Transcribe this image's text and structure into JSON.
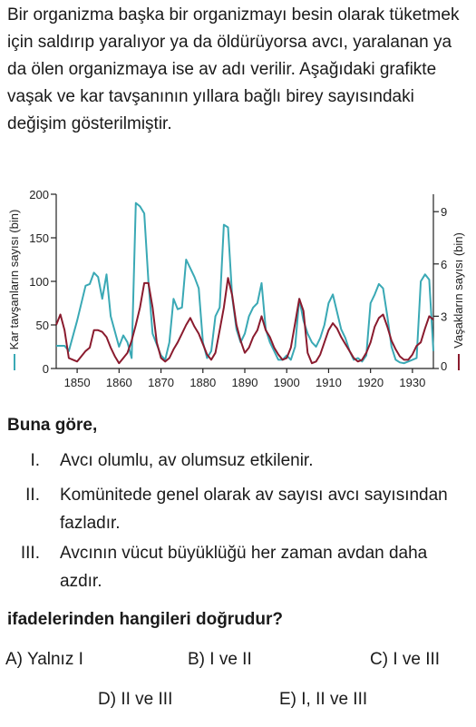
{
  "intro": "Bir organizma başka bir organizmayı besin olarak tüketmek için saldırıp yaralıyor ya da öldürüyorsa avcı, yaralanan ya da ölen organizmaya ise av adı verilir. Aşağıdaki grafikte vaşak ve kar tavşanının yıllara bağlı birey sayısındaki değişim gösterilmiştir.",
  "question": {
    "head": "Buna göre,",
    "items": [
      {
        "num": "I.",
        "text": "Avcı olumlu, av olumsuz etkilenir."
      },
      {
        "num": "II.",
        "text": "Komünitede genel olarak av sayısı avcı sayısından fazladır."
      },
      {
        "num": "III.",
        "text": "Avcının vücut büyüklüğü her zaman avdan daha azdır."
      }
    ],
    "foot": "ifadelerinden hangileri doğrudur?",
    "options": [
      {
        "letter": "A)",
        "text": "Yalnız I"
      },
      {
        "letter": "B)",
        "text": "I ve II"
      },
      {
        "letter": "C)",
        "text": "I ve III"
      },
      {
        "letter": "D)",
        "text": "II ve III"
      },
      {
        "letter": "E)",
        "text": "I, II ve III"
      }
    ]
  },
  "chart_data": {
    "type": "line",
    "title": "",
    "xlabel": "",
    "ylabel_left": "Kar tavşanların sayısı (bin)",
    "ylabel_right": "Vaşakların sayısı (bin)",
    "xlim": [
      1845,
      1935
    ],
    "ylim_left": [
      0,
      200
    ],
    "ylim_right": [
      0,
      10
    ],
    "x_ticks": [
      1850,
      1860,
      1870,
      1880,
      1890,
      1900,
      1910,
      1920,
      1930
    ],
    "y_ticks_left": [
      0,
      50,
      100,
      150,
      200
    ],
    "y_ticks_right": [
      0,
      3,
      6,
      9
    ],
    "grid": false,
    "colors": {
      "hare": "#3aa9b5",
      "lynx": "#8a1b2e"
    },
    "series": [
      {
        "name": "Kar tavşanların sayısı",
        "axis": "left",
        "x": [
          1845,
          1847,
          1848,
          1850,
          1852,
          1853,
          1854,
          1855,
          1856,
          1857,
          1858,
          1860,
          1861,
          1862,
          1863,
          1864,
          1865,
          1866,
          1867,
          1868,
          1870,
          1871,
          1872,
          1873,
          1874,
          1875,
          1876,
          1877,
          1878,
          1879,
          1880,
          1881,
          1882,
          1883,
          1884,
          1885,
          1886,
          1887,
          1888,
          1889,
          1890,
          1891,
          1892,
          1893,
          1894,
          1895,
          1896,
          1897,
          1898,
          1899,
          1900,
          1901,
          1902,
          1903,
          1904,
          1905,
          1906,
          1907,
          1908,
          1909,
          1910,
          1911,
          1912,
          1913,
          1914,
          1915,
          1916,
          1917,
          1918,
          1919,
          1920,
          1921,
          1922,
          1923,
          1924,
          1925,
          1926,
          1927,
          1928,
          1929,
          1930,
          1931,
          1932,
          1933,
          1934,
          1935
        ],
        "y": [
          26,
          26,
          20,
          55,
          95,
          97,
          110,
          105,
          80,
          108,
          60,
          25,
          38,
          30,
          12,
          190,
          186,
          178,
          100,
          40,
          15,
          10,
          30,
          80,
          68,
          70,
          125,
          115,
          105,
          92,
          30,
          12,
          20,
          60,
          70,
          165,
          162,
          82,
          45,
          30,
          40,
          60,
          70,
          75,
          98,
          45,
          30,
          20,
          10,
          10,
          15,
          10,
          25,
          80,
          55,
          40,
          30,
          25,
          35,
          50,
          75,
          85,
          65,
          45,
          35,
          20,
          10,
          12,
          8,
          15,
          75,
          85,
          97,
          92,
          60,
          25,
          10,
          7,
          6,
          8,
          10,
          12,
          100,
          108,
          102,
          20
        ]
      },
      {
        "name": "Vaşakların sayısı",
        "axis": "right",
        "x": [
          1845,
          1846,
          1847,
          1848,
          1849,
          1850,
          1851,
          1852,
          1853,
          1854,
          1855,
          1856,
          1857,
          1858,
          1859,
          1860,
          1861,
          1862,
          1863,
          1864,
          1865,
          1866,
          1867,
          1868,
          1869,
          1870,
          1871,
          1872,
          1873,
          1874,
          1875,
          1876,
          1877,
          1878,
          1879,
          1880,
          1881,
          1882,
          1883,
          1884,
          1885,
          1886,
          1887,
          1888,
          1889,
          1890,
          1891,
          1892,
          1893,
          1894,
          1895,
          1896,
          1897,
          1898,
          1899,
          1900,
          1901,
          1902,
          1903,
          1904,
          1905,
          1906,
          1907,
          1908,
          1909,
          1910,
          1911,
          1912,
          1913,
          1914,
          1915,
          1916,
          1917,
          1918,
          1919,
          1920,
          1921,
          1922,
          1923,
          1924,
          1925,
          1926,
          1927,
          1928,
          1929,
          1930,
          1931,
          1932,
          1933,
          1934,
          1935
        ],
        "y": [
          2.5,
          3.1,
          2.2,
          0.6,
          0.5,
          0.4,
          0.7,
          1.0,
          1.2,
          2.2,
          2.2,
          2.1,
          1.8,
          1.2,
          0.7,
          0.3,
          0.6,
          0.9,
          1.6,
          2.5,
          3.5,
          4.9,
          4.9,
          3.5,
          1.5,
          0.6,
          0.4,
          0.6,
          1.1,
          1.5,
          2.0,
          2.5,
          2.9,
          2.4,
          2.0,
          1.4,
          0.8,
          0.5,
          0.9,
          2.2,
          3.5,
          5.2,
          4.2,
          2.5,
          1.6,
          0.9,
          1.2,
          1.8,
          2.2,
          3.0,
          2.2,
          1.8,
          1.2,
          0.8,
          0.5,
          0.6,
          1.2,
          2.6,
          4.0,
          3.3,
          0.9,
          0.3,
          0.4,
          0.8,
          1.5,
          2.2,
          2.6,
          2.3,
          1.8,
          1.4,
          1.0,
          0.6,
          0.4,
          0.5,
          0.9,
          1.5,
          2.4,
          2.9,
          3.1,
          2.4,
          1.6,
          1.1,
          0.7,
          0.5,
          0.5,
          0.8,
          1.3,
          1.5,
          2.3,
          3.0,
          2.8
        ]
      }
    ]
  }
}
